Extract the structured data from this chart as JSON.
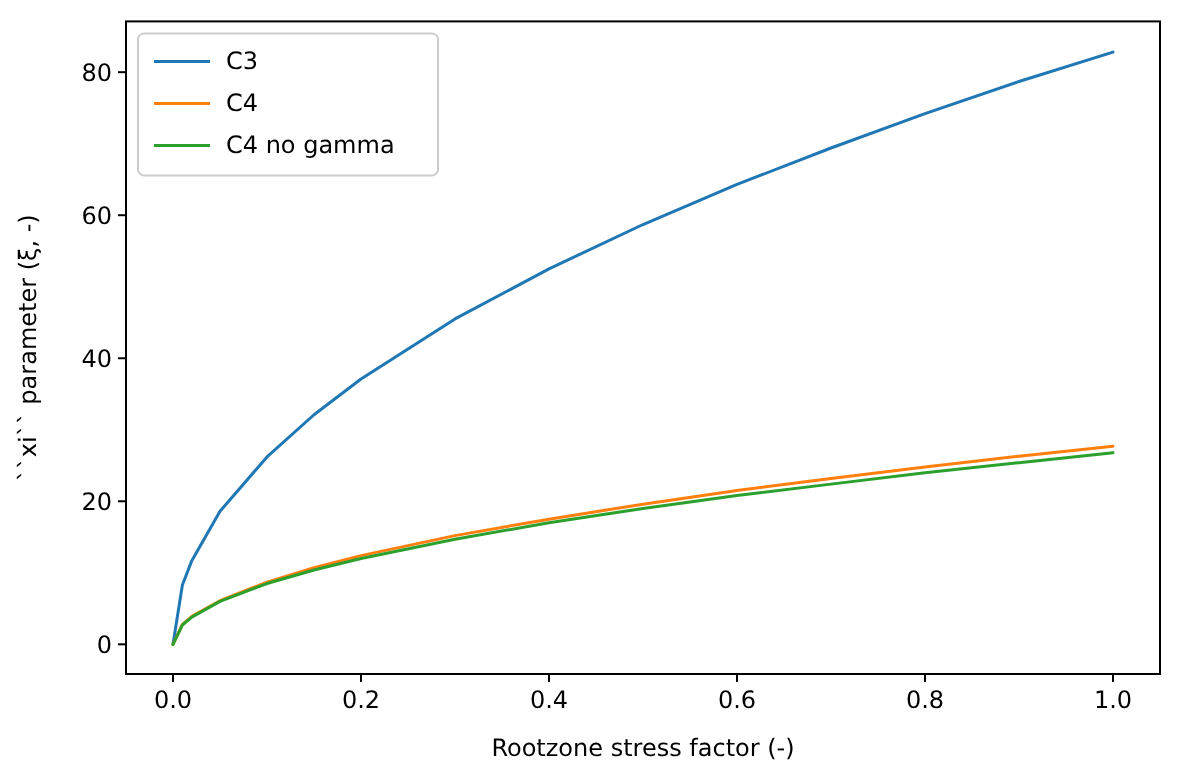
{
  "chart_data": {
    "type": "line",
    "xlabel": "Rootzone stress factor (-)",
    "ylabel": "``xi`` parameter (ξ, -)",
    "x": [
      0,
      0.01,
      0.02,
      0.05,
      0.1,
      0.15,
      0.2,
      0.3,
      0.4,
      0.5,
      0.6,
      0.7,
      0.8,
      0.9,
      1.0
    ],
    "series": [
      {
        "name": "C3",
        "color": "#1f77b4",
        "values": [
          0,
          8.3,
          11.7,
          18.6,
          26.2,
          32.1,
          37.1,
          45.5,
          52.5,
          58.7,
          64.3,
          69.4,
          74.2,
          78.7,
          82.8
        ]
      },
      {
        "name": "C4",
        "color": "#ff7f0e",
        "values": [
          0,
          2.8,
          3.9,
          6.1,
          8.7,
          10.7,
          12.4,
          15.2,
          17.5,
          19.6,
          21.5,
          23.2,
          24.8,
          26.3,
          27.7
        ]
      },
      {
        "name": "C4 no gamma",
        "color": "#2ca02c",
        "values": [
          0,
          2.7,
          3.8,
          6.0,
          8.5,
          10.4,
          12.0,
          14.7,
          17.0,
          19.0,
          20.8,
          22.4,
          24.0,
          25.4,
          26.8
        ]
      }
    ],
    "xlim": [
      -0.05,
      1.05
    ],
    "xticks": [
      {
        "value": 0,
        "label": "0.0"
      },
      0.2,
      0.4,
      0.6,
      0.8,
      {
        "value": 1,
        "label": "1.0"
      }
    ],
    "ylim": [
      -4.15,
      87.1
    ],
    "yticks": [
      0,
      20,
      40,
      60,
      80
    ],
    "legend": "top left",
    "grid": false
  }
}
